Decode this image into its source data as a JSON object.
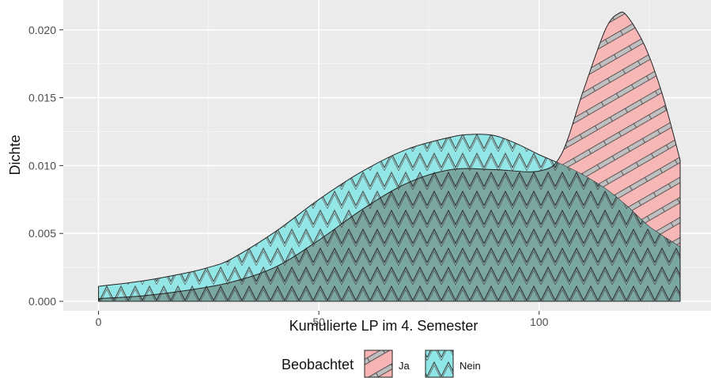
{
  "chart_data": {
    "type": "area",
    "title": "",
    "xlabel": "Kumulierte LP im 4. Semester",
    "ylabel": "Dichte",
    "xlim": [
      -8,
      139
    ],
    "ylim": [
      -0.0007,
      0.0222
    ],
    "x_ticks": [
      0,
      50,
      100
    ],
    "x_tick_labels": [
      "0",
      "50",
      "100"
    ],
    "y_ticks": [
      0.0,
      0.005,
      0.01,
      0.015,
      0.02
    ],
    "y_tick_labels": [
      "0.000",
      "0.005",
      "0.010",
      "0.015",
      "0.020"
    ],
    "grid": true,
    "legend": {
      "title": "Beobachtet",
      "placement": "bottom",
      "entries": [
        "Ja",
        "Nein"
      ]
    },
    "series": [
      {
        "name": "Ja",
        "color": "#f8b4b4",
        "pattern": "stripes",
        "x": [
          0,
          10,
          20,
          30,
          40,
          50,
          60,
          70,
          80,
          90,
          100,
          105,
          110,
          115,
          118,
          120,
          124,
          128,
          132
        ],
        "y": [
          0.0002,
          0.0004,
          0.0008,
          0.0014,
          0.0025,
          0.0045,
          0.0068,
          0.0087,
          0.0097,
          0.0097,
          0.0096,
          0.0108,
          0.0155,
          0.02,
          0.0212,
          0.021,
          0.0188,
          0.0152,
          0.0104
        ]
      },
      {
        "name": "Nein",
        "color": "#8ee6e6",
        "pattern": "zigzag",
        "x": [
          0,
          10,
          20,
          25,
          30,
          40,
          50,
          60,
          70,
          80,
          85,
          90,
          95,
          100,
          105,
          110,
          115,
          120,
          125,
          132
        ],
        "y": [
          0.0011,
          0.0015,
          0.0021,
          0.0025,
          0.0031,
          0.0051,
          0.0075,
          0.0096,
          0.0112,
          0.0121,
          0.0123,
          0.0122,
          0.0116,
          0.0108,
          0.0101,
          0.0093,
          0.0083,
          0.007,
          0.0055,
          0.004
        ]
      }
    ]
  }
}
